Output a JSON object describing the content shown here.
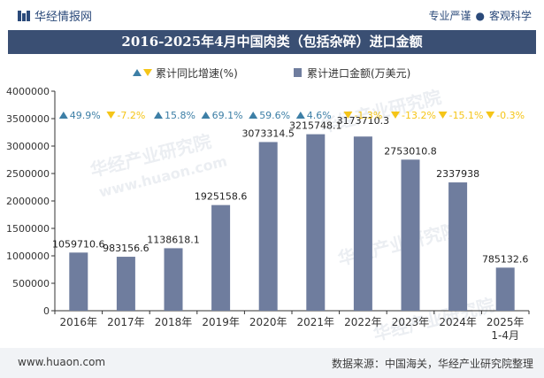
{
  "header": {
    "brand": "华经情报网",
    "tag1": "专业严谨",
    "tag_sep": "●",
    "tag2": "客观科学"
  },
  "footer": {
    "website": "www.huaon.com",
    "source": "数据来源：中国海关，华经产业研究院整理"
  },
  "watermark": {
    "text1": "华经产业研究院",
    "text2": "www.huaon.com"
  },
  "colors": {
    "bar": "#6f7d9e",
    "up": "#3d7fa6",
    "down": "#f5c518",
    "title_bg": "#3a4f73"
  },
  "chart_data": {
    "type": "bar",
    "title": "2016-2025年4月中国肉类（包括杂碎）进口金额",
    "legend_position": "top",
    "legend": {
      "growth_name": "累计同比增速(%)",
      "amount_name": "累计进口金额(万美元)"
    },
    "categories": [
      "2016年",
      "2017年",
      "2018年",
      "2019年",
      "2020年",
      "2021年",
      "2022年",
      "2023年",
      "2024年",
      "2025年\n1-4月"
    ],
    "series": [
      {
        "name": "累计进口金额(万美元)",
        "values": [
          1059710.6,
          983156.6,
          1138618.1,
          1925158.6,
          3073314.5,
          3215748.1,
          3173710.3,
          2753010.8,
          2337938,
          785132.6
        ],
        "labels": [
          "1059710.6",
          "983156.6",
          "1138618.1",
          "1925158.6",
          "3073314.5",
          "3215748.1",
          "3173710.3",
          "2753010.8",
          "2337938",
          "785132.6"
        ]
      },
      {
        "name": "累计同比增速(%)",
        "values": [
          49.9,
          -7.2,
          15.8,
          69.1,
          59.6,
          4.6,
          -1.3,
          -13.2,
          -15.1,
          -0.3
        ],
        "labels": [
          "49.9%",
          "-7.2%",
          "15.8%",
          "69.1%",
          "59.6%",
          "4.6%",
          "-1.3%",
          "-13.2%",
          "-15.1%",
          "-0.3%"
        ]
      }
    ],
    "ylim": [
      0,
      4000000
    ],
    "yticks": [
      0,
      500000,
      1000000,
      1500000,
      2000000,
      2500000,
      3000000,
      3500000,
      4000000
    ],
    "ytick_labels": [
      "0",
      "500000",
      "1000000",
      "1500000",
      "2000000",
      "2500000",
      "3000000",
      "3500000",
      "4000000"
    ],
    "grid": false
  }
}
